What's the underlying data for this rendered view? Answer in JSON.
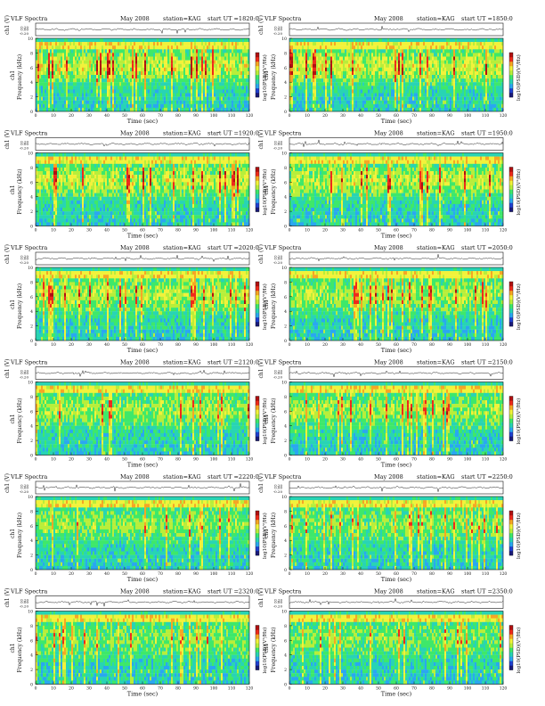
{
  "colors": {
    "background": "#ffffff",
    "axis": "#111111",
    "trace": "#222222",
    "palette": [
      "#1a1a7a",
      "#2040d0",
      "#2aa7f0",
      "#28d4b4",
      "#3ee86a",
      "#b8ee3a",
      "#f2f23a",
      "#f6a623",
      "#ee2a1a",
      "#b01010"
    ]
  },
  "chart_data": [
    {
      "type": "heatmap",
      "header": {
        "left": "VLF Spectra",
        "mid": "May 2008",
        "station": "station=KAG",
        "start": "start UT =1820:0"
      },
      "trace_ylabel": "ch1 (V)",
      "trace_ticks": [
        "0.20",
        "0.00",
        "-0.20"
      ],
      "ylabel": "Frequency (kHz)",
      "ylabel_ch": "ch1",
      "y_ticks": [
        "0",
        "2",
        "4",
        "6",
        "8",
        "10"
      ],
      "ylim": [
        0,
        10
      ],
      "xlabel": "Time (sec)",
      "x_ticks": [
        "0",
        "10",
        "20",
        "30",
        "40",
        "50",
        "60",
        "70",
        "80",
        "90",
        "100",
        "110",
        "120"
      ],
      "xlim": [
        0,
        120
      ],
      "colorbar_label": "log10(PSD)(V²/Hz)",
      "activity": 0.92
    },
    {
      "type": "heatmap",
      "header": {
        "left": "VLF Spectra",
        "mid": "May 2008",
        "station": "station=KAG",
        "start": "start UT =1850:0"
      },
      "trace_ylabel": "ch1 (V)",
      "trace_ticks": [
        "0.20",
        "0.00",
        "-0.20"
      ],
      "ylabel": "Frequency (kHz)",
      "ylabel_ch": "ch1",
      "y_ticks": [
        "0",
        "2",
        "4",
        "6",
        "8",
        "10"
      ],
      "ylim": [
        0,
        10
      ],
      "xlabel": "Time (sec)",
      "x_ticks": [
        "0",
        "10",
        "20",
        "30",
        "40",
        "50",
        "60",
        "70",
        "80",
        "90",
        "100",
        "110",
        "120"
      ],
      "xlim": [
        0,
        120
      ],
      "colorbar_label": "log10(PSD)(V²/Hz)",
      "activity": 0.9
    },
    {
      "type": "heatmap",
      "header": {
        "left": "VLF Spectra",
        "mid": "May 2008",
        "station": "station=KAG",
        "start": "start UT =1920:0"
      },
      "trace_ylabel": "ch1 (V)",
      "trace_ticks": [
        "0.20",
        "0.00",
        "-0.20"
      ],
      "ylabel": "Frequency (kHz)",
      "ylabel_ch": "ch1",
      "y_ticks": [
        "0",
        "2",
        "4",
        "6",
        "8",
        "10"
      ],
      "ylim": [
        0,
        10
      ],
      "xlabel": "Time (sec)",
      "x_ticks": [
        "0",
        "10",
        "20",
        "30",
        "40",
        "50",
        "60",
        "70",
        "80",
        "90",
        "100",
        "110",
        "120"
      ],
      "xlim": [
        0,
        120
      ],
      "colorbar_label": "log10(PSD)(V²/Hz)",
      "activity": 0.82
    },
    {
      "type": "heatmap",
      "header": {
        "left": "VLF Spectra",
        "mid": "May 2008",
        "station": "station=KAG",
        "start": "start UT =1950:0"
      },
      "trace_ylabel": "ch1 (V)",
      "trace_ticks": [
        "0.20",
        "0.00",
        "-0.20"
      ],
      "ylabel": "Frequency (kHz)",
      "ylabel_ch": "ch1",
      "y_ticks": [
        "0",
        "2",
        "4",
        "6",
        "8",
        "10"
      ],
      "ylim": [
        0,
        10
      ],
      "xlabel": "Time (sec)",
      "x_ticks": [
        "0",
        "10",
        "20",
        "30",
        "40",
        "50",
        "60",
        "70",
        "80",
        "90",
        "100",
        "110",
        "120"
      ],
      "xlim": [
        0,
        120
      ],
      "colorbar_label": "log10(PSD)(V²/Hz)",
      "activity": 0.8
    },
    {
      "type": "heatmap",
      "header": {
        "left": "VLF Spectra",
        "mid": "May 2008",
        "station": "station=KAG",
        "start": "start UT =2020:0"
      },
      "trace_ylabel": "ch1 (V)",
      "trace_ticks": [
        "0.20",
        "0.00",
        "-0.20"
      ],
      "ylabel": "Frequency (kHz)",
      "ylabel_ch": "ch1",
      "y_ticks": [
        "0",
        "2",
        "4",
        "6",
        "8",
        "10"
      ],
      "ylim": [
        0,
        10
      ],
      "xlabel": "Time (sec)",
      "x_ticks": [
        "0",
        "10",
        "20",
        "30",
        "40",
        "50",
        "60",
        "70",
        "80",
        "90",
        "100",
        "110",
        "120"
      ],
      "xlim": [
        0,
        120
      ],
      "colorbar_label": "log10(PSD)(V²/Hz)",
      "activity": 0.72
    },
    {
      "type": "heatmap",
      "header": {
        "left": "VLF Spectra",
        "mid": "May 2008",
        "station": "station=KAG",
        "start": "start UT =2050:0"
      },
      "trace_ylabel": "ch1 (V)",
      "trace_ticks": [
        "0.20",
        "0.00",
        "-0.20"
      ],
      "ylabel": "Frequency (kHz)",
      "ylabel_ch": "ch1",
      "y_ticks": [
        "0",
        "2",
        "4",
        "6",
        "8",
        "10"
      ],
      "ylim": [
        0,
        10
      ],
      "xlabel": "Time (sec)",
      "x_ticks": [
        "0",
        "10",
        "20",
        "30",
        "40",
        "50",
        "60",
        "70",
        "80",
        "90",
        "100",
        "110",
        "120"
      ],
      "xlim": [
        0,
        120
      ],
      "colorbar_label": "log10(PSD)(V²/Hz)",
      "activity": 0.7
    },
    {
      "type": "heatmap",
      "header": {
        "left": "VLF Spectra",
        "mid": "May 2008",
        "station": "station=KAG",
        "start": "start UT =2120:0"
      },
      "trace_ylabel": "ch1 (V)",
      "trace_ticks": [
        "0.20",
        "0.00",
        "-0.20"
      ],
      "ylabel": "Frequency (kHz)",
      "ylabel_ch": "ch1",
      "y_ticks": [
        "0",
        "2",
        "4",
        "6",
        "8",
        "10"
      ],
      "ylim": [
        0,
        10
      ],
      "xlabel": "Time (sec)",
      "x_ticks": [
        "0",
        "10",
        "20",
        "30",
        "40",
        "50",
        "60",
        "70",
        "80",
        "90",
        "100",
        "110",
        "120"
      ],
      "xlim": [
        0,
        120
      ],
      "colorbar_label": "log10(PSD)(V²/Hz)",
      "activity": 0.62
    },
    {
      "type": "heatmap",
      "header": {
        "left": "VLF Spectra",
        "mid": "May 2008",
        "station": "station=KAG",
        "start": "start UT =2150:0"
      },
      "trace_ylabel": "ch1 (V)",
      "trace_ticks": [
        "0.20",
        "0.00",
        "-0.20"
      ],
      "ylabel": "Frequency (kHz)",
      "ylabel_ch": "ch1",
      "y_ticks": [
        "0",
        "2",
        "4",
        "6",
        "8",
        "10"
      ],
      "ylim": [
        0,
        10
      ],
      "xlabel": "Time (sec)",
      "x_ticks": [
        "0",
        "10",
        "20",
        "30",
        "40",
        "50",
        "60",
        "70",
        "80",
        "90",
        "100",
        "110",
        "120"
      ],
      "xlim": [
        0,
        120
      ],
      "colorbar_label": "log10(PSD)(V²/Hz)",
      "activity": 0.6
    },
    {
      "type": "heatmap",
      "header": {
        "left": "VLF Spectra",
        "mid": "May 2008",
        "station": "station=KAG",
        "start": "start UT =2220:0"
      },
      "trace_ylabel": "ch1 (V)",
      "trace_ticks": [
        "0.20",
        "0.00",
        "-0.20"
      ],
      "ylabel": "Frequency (kHz)",
      "ylabel_ch": "ch1",
      "y_ticks": [
        "0",
        "2",
        "4",
        "6",
        "8",
        "10"
      ],
      "ylim": [
        0,
        10
      ],
      "xlabel": "Time (sec)",
      "x_ticks": [
        "0",
        "10",
        "20",
        "30",
        "40",
        "50",
        "60",
        "70",
        "80",
        "90",
        "100",
        "110",
        "120"
      ],
      "xlim": [
        0,
        120
      ],
      "colorbar_label": "log10(PSD)(V²/Hz)",
      "activity": 0.5
    },
    {
      "type": "heatmap",
      "header": {
        "left": "VLF Spectra",
        "mid": "May 2008",
        "station": "station=KAG",
        "start": "start UT =2250:0"
      },
      "trace_ylabel": "ch1 (V)",
      "trace_ticks": [
        "0.20",
        "0.00",
        "-0.20"
      ],
      "ylabel": "Frequency (kHz)",
      "ylabel_ch": "ch1",
      "y_ticks": [
        "0",
        "2",
        "4",
        "6",
        "8",
        "10"
      ],
      "ylim": [
        0,
        10
      ],
      "xlabel": "Time (sec)",
      "x_ticks": [
        "0",
        "10",
        "20",
        "30",
        "40",
        "50",
        "60",
        "70",
        "80",
        "90",
        "100",
        "110",
        "120"
      ],
      "xlim": [
        0,
        120
      ],
      "colorbar_label": "log10(PSD)(V²/Hz)",
      "activity": 0.46
    },
    {
      "type": "heatmap",
      "header": {
        "left": "VLF Spectra",
        "mid": "May 2008",
        "station": "station=KAG",
        "start": "start UT =2320:0"
      },
      "trace_ylabel": "ch1 (V)",
      "trace_ticks": [
        "0.20",
        "0.00",
        "-0.20"
      ],
      "ylabel": "Frequency (kHz)",
      "ylabel_ch": "ch1",
      "y_ticks": [
        "0",
        "2",
        "4",
        "6",
        "8",
        "10"
      ],
      "ylim": [
        0,
        10
      ],
      "xlabel": "Time (sec)",
      "x_ticks": [
        "0",
        "10",
        "20",
        "30",
        "40",
        "50",
        "60",
        "70",
        "80",
        "90",
        "100",
        "110",
        "120"
      ],
      "xlim": [
        0,
        120
      ],
      "colorbar_label": "log10(PSD)(V²/Hz)",
      "activity": 0.4
    },
    {
      "type": "heatmap",
      "header": {
        "left": "VLF Spectra",
        "mid": "May 2008",
        "station": "station=KAG",
        "start": "start UT =2350:0"
      },
      "trace_ylabel": "ch1 (V)",
      "trace_ticks": [
        "0.20",
        "0.00",
        "-0.20"
      ],
      "ylabel": "Frequency (kHz)",
      "ylabel_ch": "ch1",
      "y_ticks": [
        "0",
        "2",
        "4",
        "6",
        "8",
        "10"
      ],
      "ylim": [
        0,
        10
      ],
      "xlabel": "Time (sec)",
      "x_ticks": [
        "0",
        "10",
        "20",
        "30",
        "40",
        "50",
        "60",
        "70",
        "80",
        "90",
        "100",
        "110",
        "120"
      ],
      "xlim": [
        0,
        120
      ],
      "colorbar_label": "log10(PSD)(V²/Hz)",
      "activity": 0.38
    }
  ]
}
